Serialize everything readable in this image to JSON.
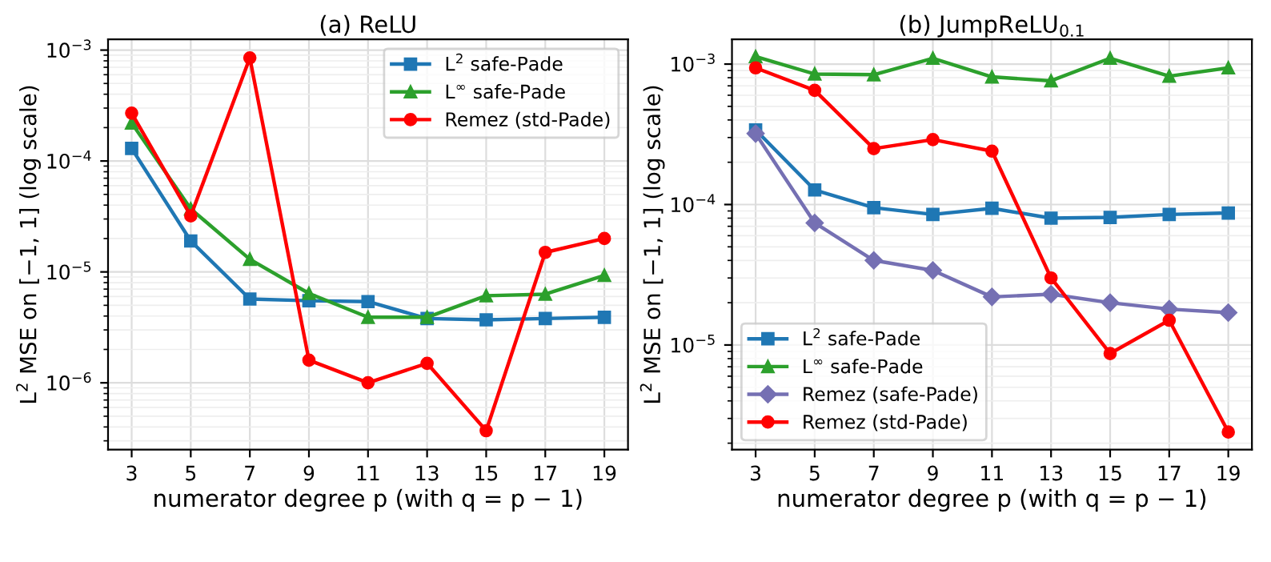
{
  "chart_data": [
    {
      "type": "line",
      "title": "(a) ReLU",
      "xlabel": "numerator degree p (with q = p − 1)",
      "ylabel": "L$^{2}$ MSE on [−1, 1] (log scale)",
      "x": [
        3,
        5,
        7,
        9,
        11,
        13,
        15,
        17,
        19
      ],
      "xlim": [
        2.2,
        19.8
      ],
      "xticks": [
        3,
        5,
        7,
        9,
        11,
        13,
        15,
        17,
        19
      ],
      "log": "y",
      "ylim": [
        2.5e-07,
        0.00125
      ],
      "yticks": [
        {
          "value": 1e-06,
          "label": "10$^{−6}$"
        },
        {
          "value": 1e-05,
          "label": "10$^{−5}$"
        },
        {
          "value": 0.0001,
          "label": "10$^{−4}$"
        },
        {
          "value": 0.001,
          "label": "10$^{−3}$"
        }
      ],
      "grid": true,
      "legend": "top right",
      "line_style": "solid",
      "series": [
        {
          "name": "L$^{2}$ safe-Pade",
          "color": "#1f77b4",
          "marker": "square",
          "values": [
            0.00013,
            1.9e-05,
            5.7e-06,
            5.5e-06,
            5.4e-06,
            3.8e-06,
            3.7e-06,
            3.8e-06,
            3.9e-06
          ]
        },
        {
          "name": "L$^{∞}$ safe-Pade",
          "color": "#2ca02c",
          "marker": "triangle",
          "values": [
            0.00022,
            3.7e-05,
            1.3e-05,
            6.4e-06,
            3.9e-06,
            3.9e-06,
            6.1e-06,
            6.3e-06,
            9.3e-06
          ]
        },
        {
          "name": "Remez (std-Pade)",
          "color": "#ff0000",
          "marker": "circle",
          "values": [
            0.00027,
            3.2e-05,
            0.00085,
            1.6e-06,
            1e-06,
            1.5e-06,
            3.7e-07,
            1.5e-05,
            2e-05
          ]
        }
      ]
    },
    {
      "type": "line",
      "title": "(b) JumpReLU$_{0.1}$",
      "xlabel": "numerator degree p (with q = p − 1)",
      "ylabel": "L$^{2}$ MSE on [−1, 1] (log scale)",
      "x": [
        3,
        5,
        7,
        9,
        11,
        13,
        15,
        17,
        19
      ],
      "xlim": [
        2.2,
        19.8
      ],
      "xticks": [
        3,
        5,
        7,
        9,
        11,
        13,
        15,
        17,
        19
      ],
      "log": "y",
      "ylim": [
        1.8e-06,
        0.0015
      ],
      "yticks": [
        {
          "value": 1e-05,
          "label": "10$^{−5}$"
        },
        {
          "value": 0.0001,
          "label": "10$^{−4}$"
        },
        {
          "value": 0.001,
          "label": "10$^{−3}$"
        }
      ],
      "grid": true,
      "legend": "bottom left",
      "line_style": "solid",
      "series": [
        {
          "name": "L$^{2}$ safe-Pade",
          "color": "#1f77b4",
          "marker": "square",
          "values": [
            0.00034,
            0.000127,
            9.5e-05,
            8.5e-05,
            9.4e-05,
            8e-05,
            8.1e-05,
            8.5e-05,
            8.7e-05
          ]
        },
        {
          "name": "L$^{∞}$ safe-Pade",
          "color": "#2ca02c",
          "marker": "triangle",
          "values": [
            0.00113,
            0.00085,
            0.00084,
            0.0011,
            0.00081,
            0.00076,
            0.0011,
            0.00082,
            0.00094
          ]
        },
        {
          "name": "Remez (safe-Pade)",
          "color": "#7570b3",
          "marker": "diamond",
          "values": [
            0.00032,
            7.4e-05,
            4e-05,
            3.4e-05,
            2.2e-05,
            2.3e-05,
            2e-05,
            1.8e-05,
            1.7e-05
          ]
        },
        {
          "name": "Remez (std-Pade)",
          "color": "#ff0000",
          "marker": "circle",
          "values": [
            0.00094,
            0.00065,
            0.00025,
            0.00029,
            0.00024,
            3e-05,
            8.7e-06,
            1.5e-05,
            2.4e-06
          ]
        }
      ]
    }
  ]
}
